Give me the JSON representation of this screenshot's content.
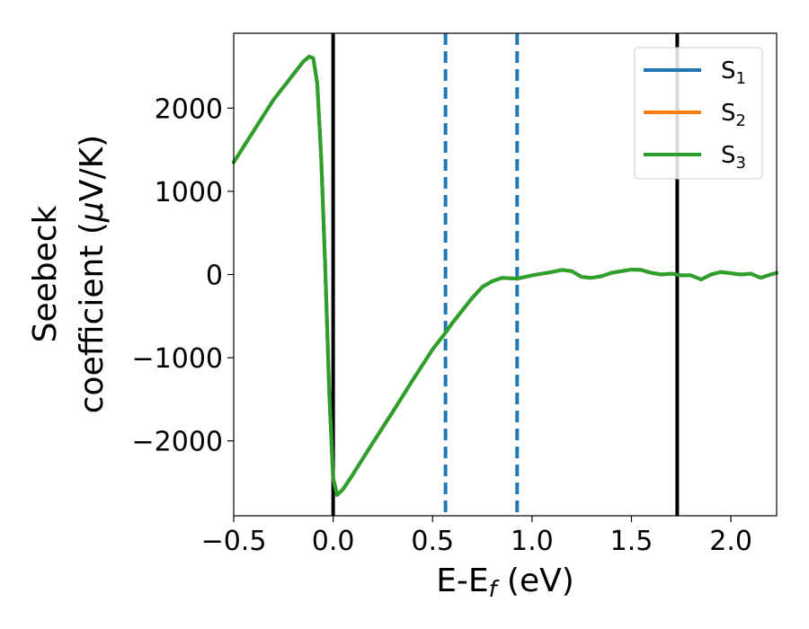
{
  "chart_data": {
    "type": "line",
    "xlabel": "E-E",
    "xlabel_sub": "f",
    "xlabel_unit": " (eV)",
    "ylabel_line1": "Seebeck",
    "ylabel_line2_a": "coefficient  (",
    "ylabel_line2_mu": "μ",
    "ylabel_line2_b": "V/K)",
    "xlim": [
      -0.5,
      2.23
    ],
    "ylim": [
      -2900,
      2900
    ],
    "xticks": [
      {
        "value": -0.5,
        "label": "−0.5"
      },
      {
        "value": 0.0,
        "label": "0.0"
      },
      {
        "value": 0.5,
        "label": "0.5"
      },
      {
        "value": 1.0,
        "label": "1.0"
      },
      {
        "value": 1.5,
        "label": "1.5"
      },
      {
        "value": 2.0,
        "label": "2.0"
      }
    ],
    "yticks": [
      {
        "value": -2000,
        "label": "−2000"
      },
      {
        "value": -1000,
        "label": "−1000"
      },
      {
        "value": 0,
        "label": "0"
      },
      {
        "value": 1000,
        "label": "1000"
      },
      {
        "value": 2000,
        "label": "2000"
      }
    ],
    "grid": false,
    "legend_position": "top-right",
    "vertical_lines": [
      {
        "x": 0.0,
        "style": "solid",
        "color": "#000000"
      },
      {
        "x": 1.73,
        "style": "solid",
        "color": "#000000"
      },
      {
        "x": 0.565,
        "style": "dashed",
        "color": "#1f77b4"
      },
      {
        "x": 0.925,
        "style": "dashed",
        "color": "#1f77b4"
      }
    ],
    "series": [
      {
        "name": "S",
        "sub": "1",
        "color": "#1f77b4",
        "x": [
          -0.5,
          -0.3,
          -0.15,
          -0.12,
          -0.1,
          -0.08,
          -0.06,
          -0.04,
          -0.02,
          0.0,
          0.02,
          0.05,
          0.1,
          0.2,
          0.3,
          0.4,
          0.5,
          0.565,
          0.6,
          0.7,
          0.75,
          0.8,
          0.85,
          0.925,
          1.0,
          1.05,
          1.1,
          1.15,
          1.2,
          1.25,
          1.3,
          1.35,
          1.4,
          1.5,
          1.55,
          1.6,
          1.65,
          1.7,
          1.75,
          1.8,
          1.85,
          1.9,
          1.95,
          2.0,
          2.05,
          2.1,
          2.15,
          2.2,
          2.23
        ],
        "y": [
          1350,
          2100,
          2560,
          2620,
          2600,
          2300,
          1400,
          100,
          -1400,
          -2450,
          -2650,
          -2580,
          -2400,
          -2020,
          -1650,
          -1270,
          -900,
          -700,
          -580,
          -280,
          -150,
          -80,
          -40,
          -50,
          -10,
          10,
          30,
          55,
          40,
          -30,
          -40,
          -20,
          20,
          60,
          55,
          20,
          0,
          10,
          -10,
          -10,
          -60,
          0,
          30,
          15,
          0,
          10,
          -40,
          0,
          20
        ]
      },
      {
        "name": "S",
        "sub": "2",
        "color": "#ff7f0e",
        "x": [
          -0.5,
          -0.3,
          -0.15,
          -0.12,
          -0.1,
          -0.08,
          -0.06,
          -0.04,
          -0.02,
          0.0,
          0.02,
          0.05,
          0.1,
          0.2,
          0.3,
          0.4,
          0.5,
          0.565,
          0.6,
          0.7,
          0.75,
          0.8,
          0.85,
          0.925,
          1.0,
          1.05,
          1.1,
          1.15,
          1.2,
          1.25,
          1.3,
          1.35,
          1.4,
          1.5,
          1.55,
          1.6,
          1.65,
          1.7,
          1.75,
          1.8,
          1.85,
          1.9,
          1.95,
          2.0,
          2.05,
          2.1,
          2.15,
          2.2,
          2.23
        ],
        "y": [
          1350,
          2100,
          2560,
          2620,
          2600,
          2300,
          1400,
          100,
          -1400,
          -2450,
          -2650,
          -2580,
          -2400,
          -2020,
          -1650,
          -1270,
          -900,
          -700,
          -580,
          -280,
          -150,
          -80,
          -40,
          -50,
          -10,
          10,
          30,
          55,
          40,
          -30,
          -40,
          -20,
          20,
          60,
          55,
          20,
          0,
          10,
          -10,
          -10,
          -60,
          0,
          30,
          15,
          0,
          10,
          -40,
          0,
          20
        ]
      },
      {
        "name": "S",
        "sub": "3",
        "color": "#2ca02c",
        "x": [
          -0.5,
          -0.3,
          -0.15,
          -0.12,
          -0.1,
          -0.08,
          -0.06,
          -0.04,
          -0.02,
          0.0,
          0.02,
          0.05,
          0.1,
          0.2,
          0.3,
          0.4,
          0.5,
          0.565,
          0.6,
          0.7,
          0.75,
          0.8,
          0.85,
          0.925,
          1.0,
          1.05,
          1.1,
          1.15,
          1.2,
          1.25,
          1.3,
          1.35,
          1.4,
          1.5,
          1.55,
          1.6,
          1.65,
          1.7,
          1.75,
          1.8,
          1.85,
          1.9,
          1.95,
          2.0,
          2.05,
          2.1,
          2.15,
          2.2,
          2.23
        ],
        "y": [
          1350,
          2100,
          2560,
          2620,
          2600,
          2300,
          1400,
          100,
          -1400,
          -2450,
          -2650,
          -2580,
          -2400,
          -2020,
          -1650,
          -1270,
          -900,
          -700,
          -580,
          -280,
          -150,
          -80,
          -40,
          -50,
          -10,
          10,
          30,
          55,
          40,
          -30,
          -40,
          -20,
          20,
          60,
          55,
          20,
          0,
          10,
          -10,
          -10,
          -60,
          0,
          30,
          15,
          0,
          10,
          -40,
          0,
          20
        ]
      }
    ]
  }
}
